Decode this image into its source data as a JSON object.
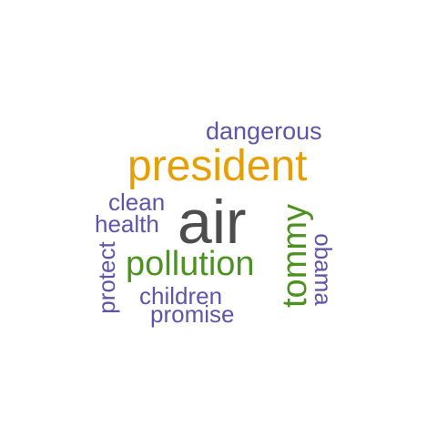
{
  "colors": {
    "dark_gray": "#4d4d4d",
    "orange": "#e69f00",
    "green": "#4d9221",
    "purple": "#5e55a8"
  },
  "words": {
    "air": "air",
    "president": "president",
    "dangerous": "dangerous",
    "pollution": "pollution",
    "clean": "clean",
    "health": "health",
    "protect": "protect",
    "children": "children",
    "promise": "promise",
    "tommy": "tommy",
    "obama": "obama"
  }
}
